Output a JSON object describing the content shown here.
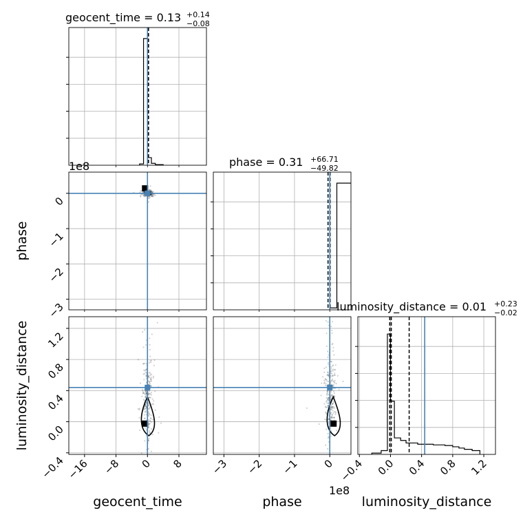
{
  "chart_data": {
    "type": "corner",
    "parameters": [
      "geocent_time",
      "phase",
      "luminosity_distance"
    ],
    "titles": [
      {
        "text": "geocent_time = 0.13",
        "sup": "+0.14",
        "sub": "−0.08"
      },
      {
        "text": "phase = 0.31",
        "sup": "+66.71",
        "sub": "−49.82"
      },
      {
        "text": "luminosity_distance = 0.01",
        "sup": "+0.23",
        "sub": "−0.02"
      }
    ],
    "axis_labels": {
      "x": [
        "geocent_time",
        "phase",
        "luminosity_distance"
      ],
      "y": [
        "phase",
        "luminosity_distance"
      ]
    },
    "offset_labels": {
      "phase_y": "1e8",
      "phase_x": "1e8"
    },
    "ticks": {
      "geocent_time": {
        "values": [
          -16,
          -8,
          0,
          8
        ],
        "labels": [
          "−16",
          "−8",
          "0",
          "8"
        ],
        "range": [
          -20,
          15
        ]
      },
      "phase": {
        "values": [
          -3,
          -2,
          -1,
          0
        ],
        "labels": [
          "−3",
          "−2",
          "−1",
          "0"
        ],
        "range": [
          -3.3,
          0.6
        ]
      },
      "luminosity_distance": {
        "values": [
          -0.4,
          0.0,
          0.4,
          0.8,
          1.2
        ],
        "labels": [
          "−0.4",
          "0.0",
          "0.4",
          "0.8",
          "1.2"
        ],
        "range": [
          -0.42,
          1.35
        ]
      }
    },
    "truths": {
      "geocent_time": 0,
      "phase": 0,
      "luminosity_distance": 0.44
    },
    "quantile_lines": {
      "geocent_time": [
        0.05,
        0.13,
        0.27
      ],
      "phase": [
        -0.05,
        0.0,
        0.01
      ],
      "luminosity_distance": [
        -0.01,
        0.01,
        0.24
      ]
    },
    "histograms": {
      "geocent_time": {
        "edges": [
          -2.0,
          -1.0,
          0.0,
          1.0,
          2.0,
          4.0
        ],
        "values": [
          0.01,
          1.0,
          0.06,
          0.015,
          0.005
        ]
      },
      "phase": {
        "edges": [
          0.0,
          0.2,
          0.7
        ],
        "values": [
          0.015,
          1.0
        ]
      },
      "luminosity_distance": {
        "edges": [
          -0.24,
          -0.12,
          -0.04,
          0.0,
          0.05,
          0.13,
          0.2,
          0.35,
          0.55,
          0.7,
          0.8,
          0.88,
          0.95,
          1.05,
          1.15
        ],
        "values": [
          0.01,
          0.03,
          0.95,
          0.42,
          0.13,
          0.11,
          0.09,
          0.08,
          0.075,
          0.07,
          0.06,
          0.05,
          0.04,
          0.03
        ]
      }
    },
    "grid": true
  }
}
